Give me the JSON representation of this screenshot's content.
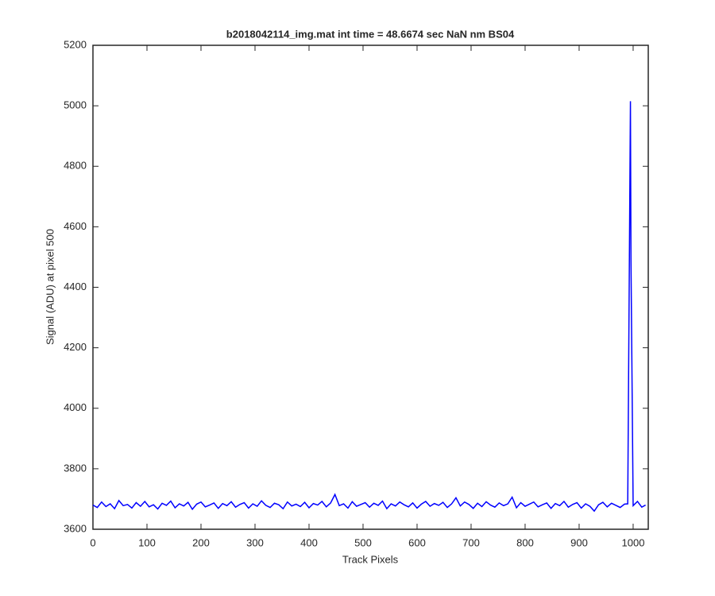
{
  "chart_data": {
    "type": "line",
    "title": "b2018042114_img.mat int time = 48.6674 sec  NaN nm BS04",
    "x_label": "Track Pixels",
    "y_label": "Signal (ADU) at pixel 500",
    "x": [
      0,
      8,
      16,
      24,
      32,
      40,
      48,
      56,
      64,
      72,
      80,
      88,
      96,
      104,
      112,
      120,
      128,
      136,
      144,
      152,
      160,
      168,
      176,
      184,
      192,
      200,
      208,
      216,
      224,
      232,
      240,
      248,
      256,
      264,
      272,
      280,
      288,
      296,
      304,
      312,
      320,
      328,
      336,
      344,
      352,
      360,
      368,
      376,
      384,
      392,
      400,
      408,
      416,
      424,
      432,
      440,
      448,
      456,
      464,
      472,
      480,
      488,
      496,
      504,
      512,
      520,
      528,
      536,
      544,
      552,
      560,
      568,
      576,
      584,
      592,
      600,
      608,
      616,
      624,
      632,
      640,
      648,
      656,
      664,
      672,
      680,
      688,
      696,
      704,
      712,
      720,
      728,
      736,
      744,
      752,
      760,
      768,
      776,
      784,
      792,
      800,
      808,
      816,
      824,
      832,
      840,
      848,
      856,
      864,
      872,
      880,
      888,
      896,
      904,
      912,
      920,
      928,
      936,
      944,
      952,
      960,
      968,
      976,
      984,
      990,
      995,
      996,
      1000,
      1008,
      1016,
      1023
    ],
    "series": [
      {
        "color": "#0000ff",
        "values": [
          3680,
          3672,
          3690,
          3675,
          3684,
          3668,
          3695,
          3678,
          3682,
          3670,
          3688,
          3676,
          3692,
          3674,
          3681,
          3667,
          3686,
          3679,
          3693,
          3671,
          3684,
          3677,
          3689,
          3666,
          3683,
          3690,
          3674,
          3680,
          3687,
          3669,
          3685,
          3678,
          3691,
          3673,
          3682,
          3688,
          3670,
          3684,
          3676,
          3694,
          3679,
          3672,
          3686,
          3681,
          3668,
          3690,
          3677,
          3683,
          3675,
          3689,
          3671,
          3685,
          3680,
          3692,
          3674,
          3687,
          3715,
          3678,
          3684,
          3670,
          3691,
          3676,
          3682,
          3688,
          3673,
          3686,
          3679,
          3693,
          3668,
          3684,
          3677,
          3690,
          3681,
          3674,
          3687,
          3670,
          3683,
          3692,
          3676,
          3685,
          3679,
          3689,
          3672,
          3684,
          3704,
          3677,
          3690,
          3682,
          3669,
          3686,
          3675,
          3691,
          3680,
          3673,
          3687,
          3678,
          3684,
          3706,
          3671,
          3688,
          3676,
          3683,
          3690,
          3674,
          3681,
          3687,
          3669,
          3685,
          3678,
          3692,
          3673,
          3682,
          3688,
          3670,
          3684,
          3676,
          3660,
          3681,
          3689,
          3674,
          3686,
          3679,
          3672,
          3683,
          3684,
          5015,
          4490,
          3678,
          3692,
          3673,
          3680
        ]
      }
    ],
    "xlim": [
      0,
      1028
    ],
    "ylim": [
      3600,
      5200
    ],
    "xticks": [
      0,
      100,
      200,
      300,
      400,
      500,
      600,
      700,
      800,
      900,
      1000
    ],
    "yticks": [
      3600,
      3800,
      4000,
      4200,
      4400,
      4600,
      4800,
      5000,
      5200
    ],
    "grid": false
  }
}
